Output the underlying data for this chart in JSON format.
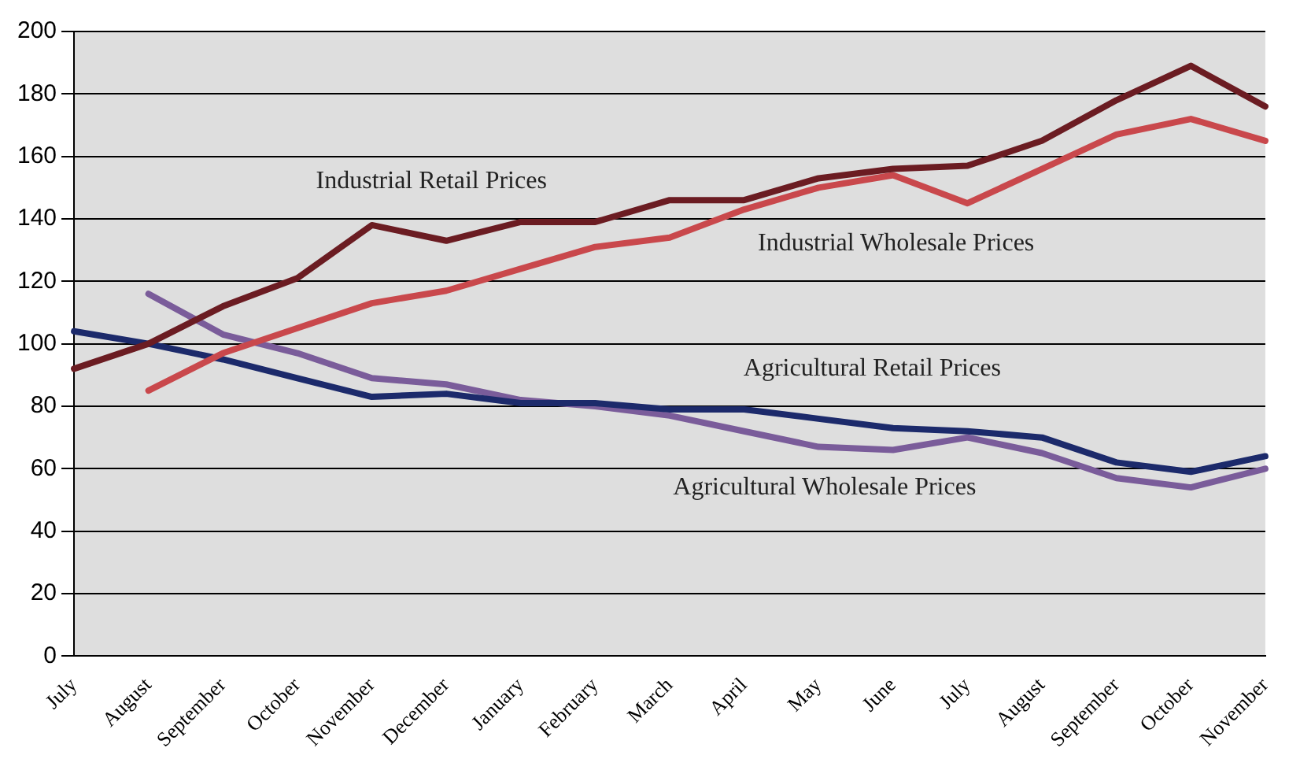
{
  "chart_data": {
    "type": "line",
    "categories": [
      "July",
      "August",
      "September",
      "October",
      "November",
      "December",
      "January",
      "February",
      "March",
      "April",
      "May",
      "June",
      "July",
      "August",
      "September",
      "October",
      "November"
    ],
    "series": [
      {
        "name": "Industrial Retail Prices",
        "color": "#6b1c22",
        "values": [
          92,
          100,
          112,
          121,
          138,
          133,
          139,
          139,
          146,
          146,
          153,
          156,
          157,
          165,
          178,
          189,
          176
        ]
      },
      {
        "name": "Industrial Wholesale Prices",
        "color": "#c9484c",
        "values": [
          null,
          85,
          97,
          105,
          113,
          117,
          124,
          131,
          134,
          143,
          150,
          154,
          145,
          156,
          167,
          172,
          165
        ]
      },
      {
        "name": "Agricultural Retail Prices",
        "color": "#1c2a6b",
        "values": [
          104,
          100,
          95,
          89,
          83,
          84,
          81,
          81,
          79,
          79,
          76,
          73,
          72,
          70,
          62,
          59,
          64
        ]
      },
      {
        "name": "Agricultural Wholesale Prices",
        "color": "#7a5c9a",
        "values": [
          null,
          116,
          103,
          97,
          89,
          87,
          82,
          80,
          77,
          72,
          67,
          66,
          70,
          65,
          57,
          54,
          60
        ]
      }
    ],
    "ylim": [
      0,
      200
    ],
    "yticks": [
      0,
      20,
      40,
      60,
      80,
      100,
      120,
      140,
      160,
      180,
      200
    ],
    "grid": "y",
    "legend": false,
    "marker": "none",
    "line_style": "solid"
  }
}
